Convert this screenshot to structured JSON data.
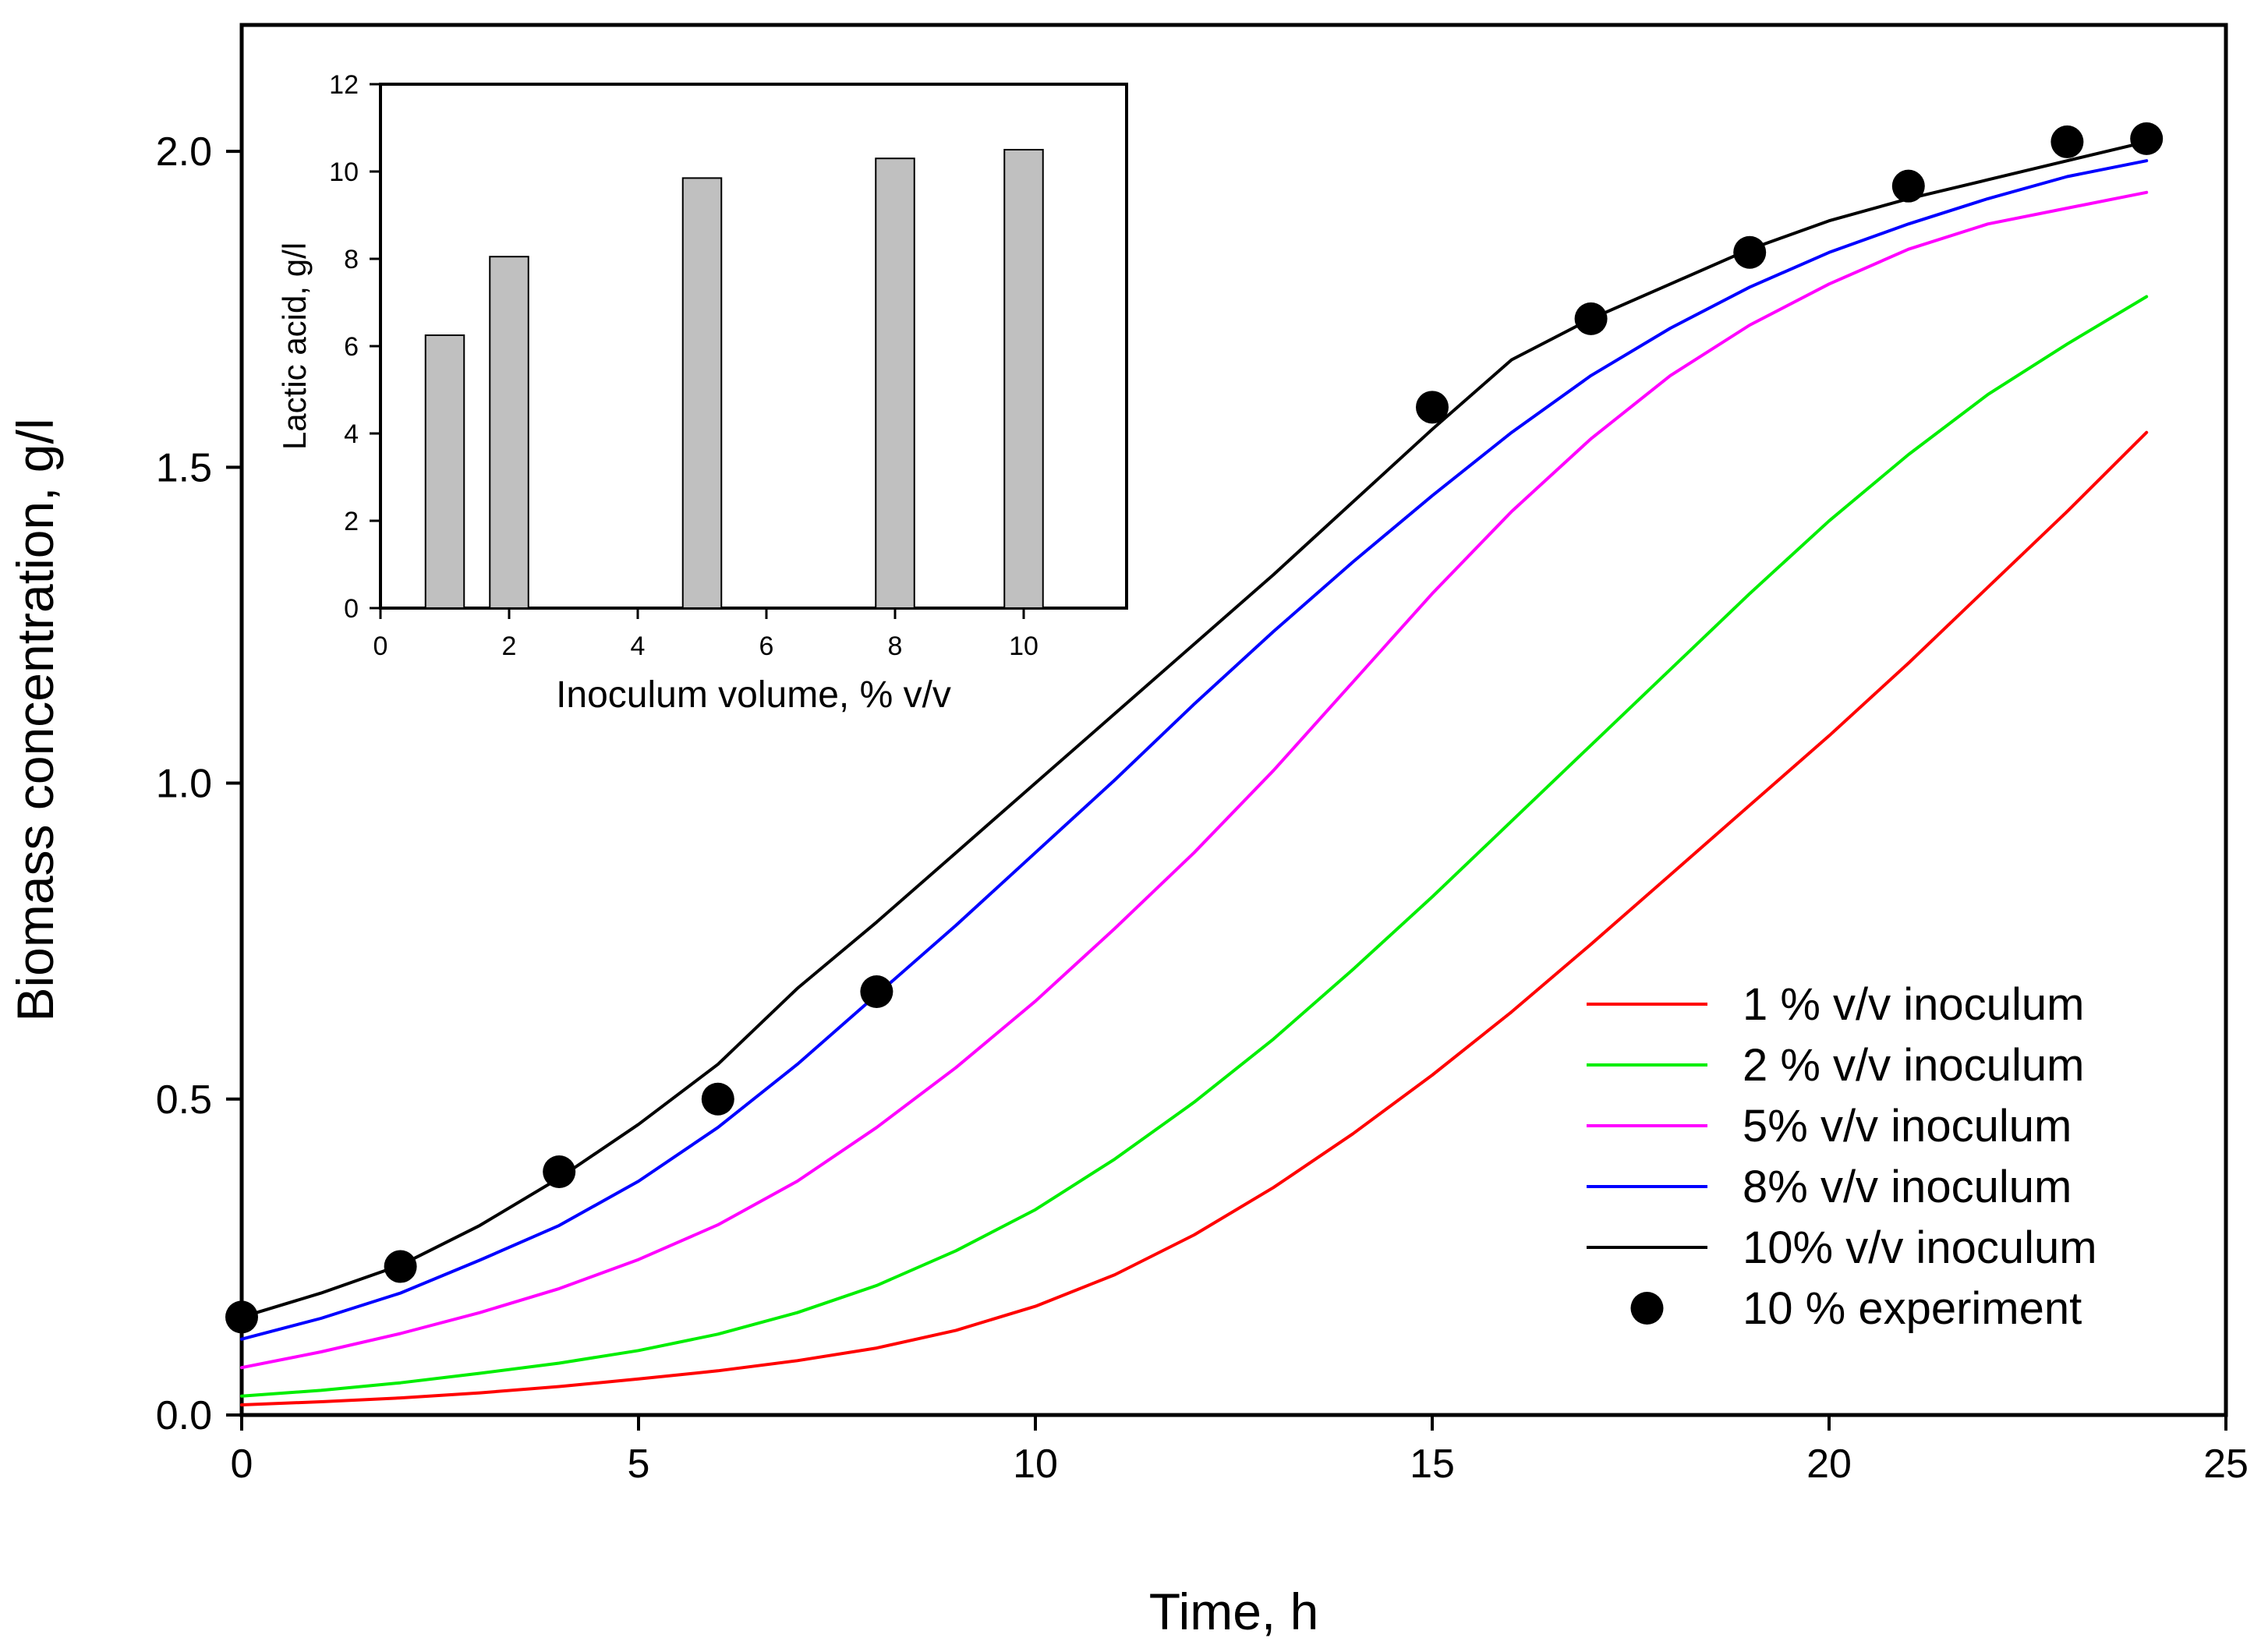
{
  "chart_data": [
    {
      "type": "line",
      "id": "main",
      "xlabel": "Time, h",
      "ylabel": "Biomass concentration, g/l",
      "xlim": [
        0,
        25
      ],
      "ylim": [
        0,
        2.2
      ],
      "xticks": [
        0,
        5,
        10,
        15,
        20,
        25
      ],
      "xtick_labels": [
        "0",
        "5",
        "10",
        "15",
        "20",
        "25"
      ],
      "yticks": [
        0.0,
        0.5,
        1.0,
        1.5,
        2.0
      ],
      "ytick_labels": [
        "0.0",
        "0.5",
        "1.0",
        "1.5",
        "2.0"
      ],
      "grid": false,
      "legend_position": "bottom-right",
      "x": [
        0,
        1,
        2,
        3,
        4,
        5,
        6,
        7,
        8,
        9,
        10,
        11,
        12,
        13,
        14,
        15,
        16,
        17,
        18,
        19,
        20,
        21,
        22,
        23,
        24
      ],
      "series": [
        {
          "name": "1 % v/v inoculum",
          "color": "#ff0000",
          "values": [
            0.016,
            0.021,
            0.027,
            0.035,
            0.045,
            0.057,
            0.07,
            0.086,
            0.106,
            0.134,
            0.172,
            0.222,
            0.285,
            0.36,
            0.445,
            0.538,
            0.638,
            0.745,
            0.855,
            0.965,
            1.075,
            1.19,
            1.31,
            1.43,
            1.555
          ]
        },
        {
          "name": "2 % v/v inoculum",
          "color": "#00ee00",
          "values": [
            0.03,
            0.039,
            0.051,
            0.066,
            0.082,
            0.102,
            0.128,
            0.162,
            0.205,
            0.26,
            0.325,
            0.405,
            0.495,
            0.595,
            0.705,
            0.82,
            0.94,
            1.06,
            1.18,
            1.3,
            1.415,
            1.52,
            1.615,
            1.695,
            1.77
          ]
        },
        {
          "name": "5% v/v inoculum",
          "color": "#ff00ff",
          "values": [
            0.075,
            0.1,
            0.129,
            0.162,
            0.2,
            0.246,
            0.301,
            0.37,
            0.455,
            0.55,
            0.655,
            0.77,
            0.89,
            1.02,
            1.16,
            1.3,
            1.43,
            1.545,
            1.645,
            1.725,
            1.79,
            1.845,
            1.885,
            1.91,
            1.935
          ]
        },
        {
          "name": "8% v/v inoculum",
          "color": "#0000ff",
          "values": [
            0.12,
            0.153,
            0.193,
            0.245,
            0.3,
            0.37,
            0.455,
            0.555,
            0.665,
            0.775,
            0.89,
            1.005,
            1.125,
            1.24,
            1.35,
            1.455,
            1.555,
            1.645,
            1.72,
            1.785,
            1.84,
            1.885,
            1.925,
            1.96,
            1.985
          ]
        },
        {
          "name": "10% v/v inoculum",
          "color": "#000000",
          "values": [
            0.155,
            0.193,
            0.237,
            0.3,
            0.375,
            0.46,
            0.555,
            0.675,
            0.78,
            0.89,
            1.0,
            1.11,
            1.22,
            1.33,
            1.445,
            1.56,
            1.67,
            1.735,
            1.79,
            1.845,
            1.89,
            1.925,
            1.955,
            1.985,
            2.015
          ]
        }
      ],
      "scatter": {
        "name": "10 % experiment",
        "color": "#000000",
        "x": [
          0,
          2,
          4,
          6,
          8,
          15,
          17,
          19,
          21,
          23,
          24
        ],
        "y": [
          0.155,
          0.235,
          0.385,
          0.5,
          0.67,
          1.595,
          1.735,
          1.84,
          1.945,
          2.015,
          2.02
        ]
      }
    },
    {
      "type": "bar",
      "id": "inset",
      "xlabel": "Inoculum volume, % v/v",
      "ylabel": "Lactic acid, g/l",
      "xlim": [
        0,
        11.6
      ],
      "ylim": [
        0,
        12
      ],
      "xticks": [
        0,
        2,
        4,
        6,
        8,
        10
      ],
      "xtick_labels": [
        "0",
        "2",
        "4",
        "6",
        "8",
        "10"
      ],
      "yticks": [
        0,
        2,
        4,
        6,
        8,
        10,
        12
      ],
      "ytick_labels": [
        "0",
        "2",
        "4",
        "6",
        "8",
        "10",
        "12"
      ],
      "bar_color": "#c0c0c0",
      "bar_width": 0.6,
      "x": [
        1,
        2,
        5,
        8,
        10
      ],
      "values": [
        6.25,
        8.05,
        9.85,
        10.3,
        10.5
      ]
    }
  ]
}
